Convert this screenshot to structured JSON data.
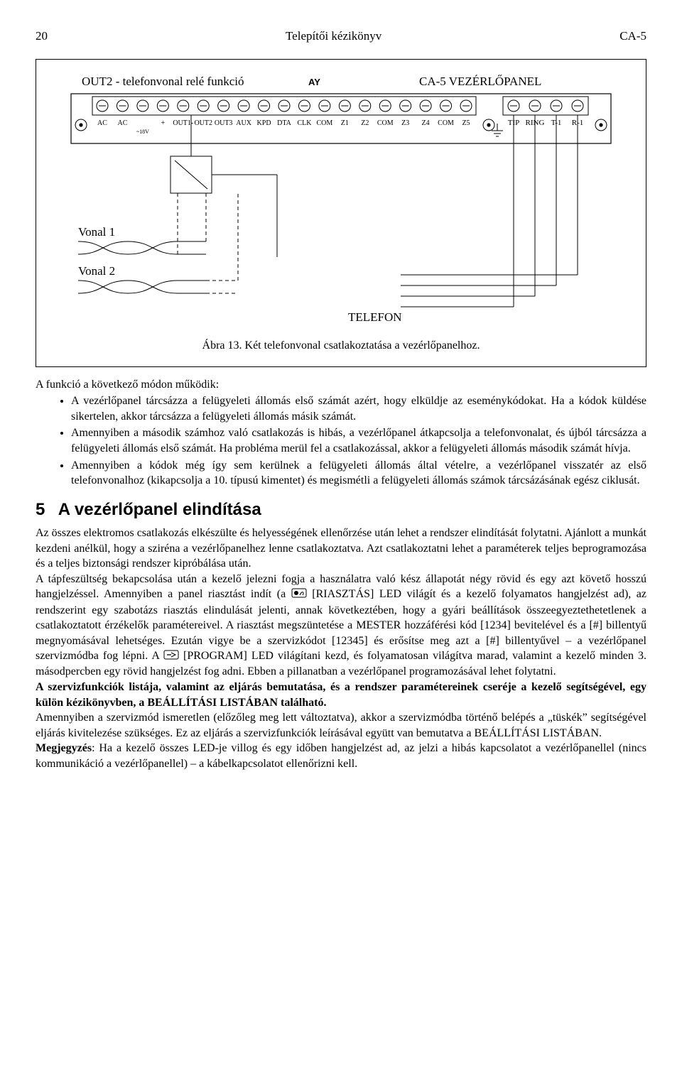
{
  "header": {
    "page_num": "20",
    "title": "Telepítői kézikönyv",
    "model": "CA-5"
  },
  "diagram": {
    "out2_label": "OUT2 - telefonvonal relé funkció",
    "panel_label": "CA-5 VEZÉRLŐPANEL",
    "board_labels_left": [
      "AC",
      "AC",
      "~18V",
      "+",
      "OUT1-",
      "OUT2",
      "OUT3",
      "AUX",
      "KPD",
      "DTA",
      "CLK",
      "COM",
      "Z1",
      "Z2",
      "COM",
      "Z3",
      "Z4",
      "COM",
      "Z5"
    ],
    "board_right_labels": [
      "TIP",
      "RING",
      "T-1",
      "R-1"
    ],
    "brand": "AY",
    "vonal1": "Vonal 1",
    "vonal2": "Vonal 2",
    "telefon": "TELEFON",
    "caption": "Ábra 13. Két telefonvonal csatlakoztatása a vezérlőpanelhoz."
  },
  "intro": "A funkció a következő módon működik:",
  "bullets": [
    "A vezérlőpanel tárcsázza a felügyeleti állomás első számát azért, hogy elküldje az eseménykódokat. Ha a kódok küldése sikertelen, akkor tárcsázza a felügyeleti állomás másik számát.",
    "Amennyiben a második számhoz való csatlakozás is hibás, a vezérlőpanel átkapcsolja a telefonvonalat, és újból tárcsázza a felügyeleti állomás első számát. Ha probléma merül fel a csatlakozással, akkor a felügyeleti állomás második számát hívja.",
    "Amennyiben a kódok még így sem kerülnek a felügyeleti állomás által vételre, a vezérlőpanel visszatér az első telefonvonalhoz (kikapcsolja a 10. típusú kimentet) és megismétli a felügyeleti állomás számok tárcsázásának egész ciklusát."
  ],
  "section": {
    "num": "5",
    "title": "A vezérlőpanel elindítása"
  },
  "body": {
    "p1a": "Az összes elektromos csatlakozás elkészülte és helyességének ellenőrzése után lehet a rendszer elindítását folytatni. Ajánlott a munkát kezdeni anélkül, hogy a sziréna a vezérlőpanelhez lenne csatlakoztatva. Azt csatlakoztatni lehet a paraméterek teljes beprogramozása és a teljes biztonsági rendszer kipróbálása után.",
    "p2a": "A tápfeszültség bekapcsolása után a kezelő jelezni fogja a használatra való kész állapotát négy rövid és egy azt követő hosszú hangjelzéssel. Amennyiben a panel riasztást indít (a ",
    "p2b": " [RIASZTÁS] LED világít és a kezelő folyamatos hangjelzést ad), az rendszerint egy szabotázs riasztás elindulását jelenti, annak következtében, hogy a gyári beállítások összeegyeztethetetlenek a csatlakoztatott érzékelők paramétereivel. A riasztást megszüntetése a MESTER hozzáférési kód [1234] bevitelével és a [#] billentyű megnyomásával lehetséges. Ezután vigye be a szervizkódot [12345] és erősítse meg azt a [#] billentyűvel – a vezérlőpanel szervizmódba fog lépni. A ",
    "p2c": " [PROGRAM] LED világítani kezd, és folyamatosan világítva marad, valamint a kezelő minden 3. másodpercben egy rövid hangjelzést fog adni. Ebben a pillanatban a vezérlőpanel programozásával lehet folytatni.",
    "bold1": "A szervizfunkciók listája, valamint az eljárás bemutatása, és a rendszer paramétereinek cseréje a kezelő segítségével, egy külön kézikönyvben, a BEÁLLÍTÁSI LISTÁBAN található.",
    "p3": "Amennyiben a szervizmód ismeretlen (előzőleg meg lett változtatva), akkor a szervizmódba történő belépés a „tüskék” segítségével eljárás kivitelezése szükséges. Ez az eljárás a szervizfunkciók leírásával együtt van bemutatva a BEÁLLÍTÁSI LISTÁBAN.",
    "note_label": "Megjegyzés",
    "note_body": ": Ha a kezelő összes LED-je villog és egy időben hangjelzést ad, az jelzi a hibás kapcsolatot a vezérlőpanellel (nincs kommunikáció a vezérlőpanellel) – a kábelkapcsolatot ellenőrizni kell."
  }
}
